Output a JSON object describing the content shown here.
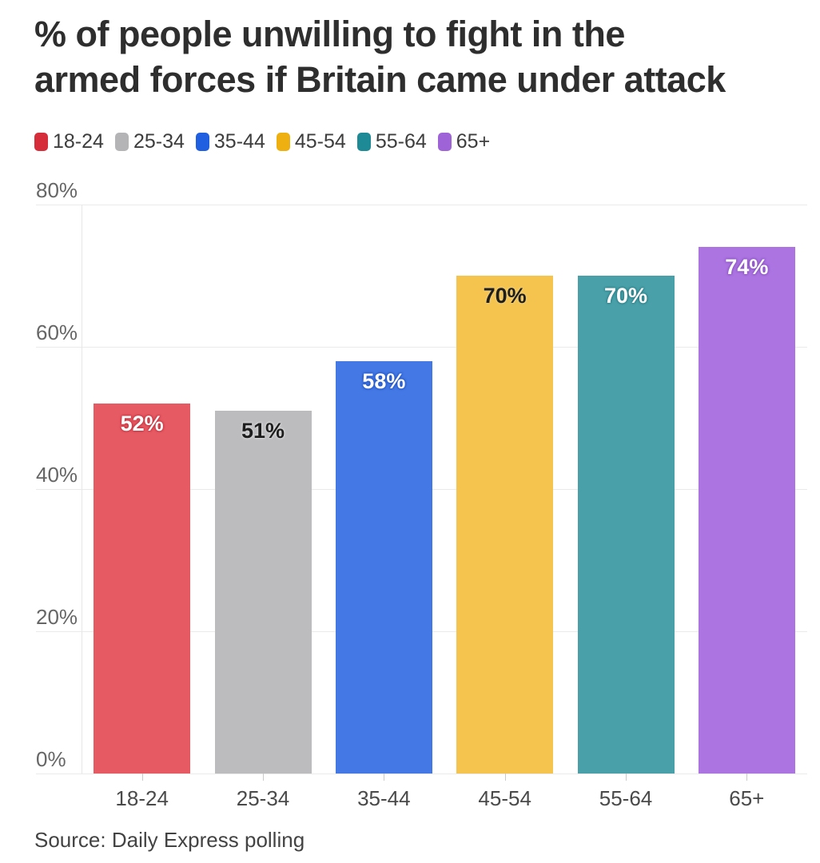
{
  "title": "% of people unwilling to fight in the\narmed forces if Britain came under attack",
  "source": "Source: Daily Express polling",
  "legend": {
    "position": "top",
    "items": [
      {
        "label": "18-24",
        "color": "#d62d3a"
      },
      {
        "label": "25-34",
        "color": "#b4b4b7"
      },
      {
        "label": "35-44",
        "color": "#1f5fe0"
      },
      {
        "label": "45-54",
        "color": "#eeb011"
      },
      {
        "label": "55-64",
        "color": "#1d8a96"
      },
      {
        "label": "65+",
        "color": "#9f63d8"
      }
    ]
  },
  "chart_data": {
    "type": "bar",
    "title": "% of people unwilling to fight in the armed forces if Britain came under attack",
    "categories": [
      "18-24",
      "25-34",
      "35-44",
      "45-54",
      "55-64",
      "65+"
    ],
    "values": [
      52,
      51,
      58,
      70,
      70,
      74
    ],
    "value_labels": [
      "52%",
      "51%",
      "58%",
      "70%",
      "70%",
      "74%"
    ],
    "bar_colors": [
      "#e65a64",
      "#bcbcbf",
      "#4478e4",
      "#f4c44f",
      "#4aa0a8",
      "#ab74e0"
    ],
    "label_text_colors": [
      "#ffffff",
      "#1e1e1e",
      "#ffffff",
      "#1e1e1e",
      "#ffffff",
      "#ffffff"
    ],
    "label_halo_colors": [
      "#c53540",
      "#d9d9db",
      "#2256c7",
      "#f0cd74",
      "#2d818a",
      "#8d53c4"
    ],
    "xlabel": "",
    "ylabel": "",
    "ylim": [
      0,
      80
    ],
    "yticks": [
      0,
      20,
      40,
      60,
      80
    ],
    "ytick_labels": [
      "0%",
      "20%",
      "40%",
      "60%",
      "80%"
    ],
    "grid": true,
    "legend_position": "top"
  }
}
